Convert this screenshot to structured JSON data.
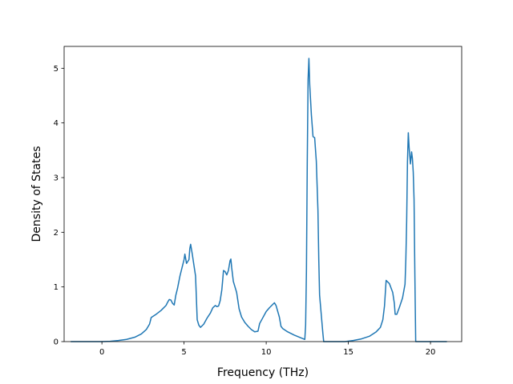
{
  "chart_data": {
    "type": "line",
    "xlabel": "Frequency (THz)",
    "ylabel": "Density of States",
    "xlim": [
      -2.3,
      21.9
    ],
    "ylim": [
      0,
      5.4
    ],
    "grid": false,
    "x_ticks": [
      0,
      5,
      10,
      15,
      20
    ],
    "y_ticks": [
      0,
      1,
      2,
      3,
      4,
      5
    ],
    "x_tick_labels": [
      "0",
      "5",
      "10",
      "15",
      "20"
    ],
    "y_tick_labels": [
      "0",
      "1",
      "2",
      "3",
      "4",
      "5"
    ],
    "series": [
      {
        "color": "#1f77b4",
        "points": [
          [
            -1.9,
            0
          ],
          [
            0.0,
            0.0
          ],
          [
            0.5,
            0.005
          ],
          [
            1.0,
            0.02
          ],
          [
            1.5,
            0.04
          ],
          [
            2.0,
            0.08
          ],
          [
            2.4,
            0.14
          ],
          [
            2.7,
            0.22
          ],
          [
            2.9,
            0.32
          ],
          [
            3.0,
            0.44
          ],
          [
            3.3,
            0.5
          ],
          [
            3.6,
            0.57
          ],
          [
            3.9,
            0.66
          ],
          [
            4.0,
            0.72
          ],
          [
            4.1,
            0.77
          ],
          [
            4.2,
            0.76
          ],
          [
            4.3,
            0.7
          ],
          [
            4.4,
            0.67
          ],
          [
            4.5,
            0.85
          ],
          [
            4.6,
            0.97
          ],
          [
            4.75,
            1.2
          ],
          [
            4.9,
            1.38
          ],
          [
            5.0,
            1.5
          ],
          [
            5.05,
            1.6
          ],
          [
            5.15,
            1.43
          ],
          [
            5.3,
            1.5
          ],
          [
            5.35,
            1.7
          ],
          [
            5.4,
            1.78
          ],
          [
            5.5,
            1.6
          ],
          [
            5.6,
            1.4
          ],
          [
            5.7,
            1.2
          ],
          [
            5.8,
            0.4
          ],
          [
            5.9,
            0.3
          ],
          [
            6.0,
            0.26
          ],
          [
            6.2,
            0.32
          ],
          [
            6.4,
            0.43
          ],
          [
            6.6,
            0.52
          ],
          [
            6.75,
            0.62
          ],
          [
            6.9,
            0.66
          ],
          [
            7.0,
            0.64
          ],
          [
            7.1,
            0.65
          ],
          [
            7.2,
            0.75
          ],
          [
            7.3,
            0.95
          ],
          [
            7.35,
            1.12
          ],
          [
            7.4,
            1.3
          ],
          [
            7.5,
            1.28
          ],
          [
            7.6,
            1.22
          ],
          [
            7.7,
            1.3
          ],
          [
            7.8,
            1.48
          ],
          [
            7.85,
            1.51
          ],
          [
            7.9,
            1.35
          ],
          [
            8.0,
            1.1
          ],
          [
            8.2,
            0.9
          ],
          [
            8.35,
            0.6
          ],
          [
            8.5,
            0.45
          ],
          [
            8.7,
            0.35
          ],
          [
            8.9,
            0.28
          ],
          [
            9.1,
            0.22
          ],
          [
            9.3,
            0.18
          ],
          [
            9.5,
            0.19
          ],
          [
            9.6,
            0.33
          ],
          [
            9.8,
            0.44
          ],
          [
            10.0,
            0.55
          ],
          [
            10.2,
            0.62
          ],
          [
            10.4,
            0.68
          ],
          [
            10.5,
            0.71
          ],
          [
            10.6,
            0.66
          ],
          [
            10.8,
            0.45
          ],
          [
            10.9,
            0.28
          ],
          [
            11.0,
            0.24
          ],
          [
            11.3,
            0.18
          ],
          [
            11.7,
            0.12
          ],
          [
            12.1,
            0.07
          ],
          [
            12.35,
            0.04
          ],
          [
            12.4,
            0.3
          ],
          [
            12.45,
            1.3
          ],
          [
            12.5,
            3.3
          ],
          [
            12.55,
            4.8
          ],
          [
            12.6,
            5.18
          ],
          [
            12.65,
            4.7
          ],
          [
            12.75,
            4.15
          ],
          [
            12.85,
            3.75
          ],
          [
            12.95,
            3.73
          ],
          [
            13.05,
            3.3
          ],
          [
            13.15,
            2.4
          ],
          [
            13.2,
            1.5
          ],
          [
            13.25,
            0.85
          ],
          [
            13.35,
            0.5
          ],
          [
            13.45,
            0.15
          ],
          [
            13.5,
            0.0
          ],
          [
            14.8,
            0.0
          ],
          [
            15.3,
            0.02
          ],
          [
            15.8,
            0.05
          ],
          [
            16.3,
            0.1
          ],
          [
            16.7,
            0.18
          ],
          [
            16.95,
            0.26
          ],
          [
            17.1,
            0.4
          ],
          [
            17.2,
            0.65
          ],
          [
            17.3,
            1.12
          ],
          [
            17.5,
            1.06
          ],
          [
            17.7,
            0.9
          ],
          [
            17.8,
            0.7
          ],
          [
            17.85,
            0.5
          ],
          [
            17.95,
            0.5
          ],
          [
            18.1,
            0.62
          ],
          [
            18.3,
            0.8
          ],
          [
            18.45,
            1.05
          ],
          [
            18.5,
            1.5
          ],
          [
            18.55,
            2.2
          ],
          [
            18.6,
            3.3
          ],
          [
            18.65,
            3.82
          ],
          [
            18.7,
            3.55
          ],
          [
            18.78,
            3.25
          ],
          [
            18.85,
            3.47
          ],
          [
            18.9,
            3.35
          ],
          [
            18.95,
            3.1
          ],
          [
            19.0,
            2.6
          ],
          [
            19.05,
            1.2
          ],
          [
            19.1,
            0.0
          ],
          [
            21.0,
            0.0
          ]
        ]
      }
    ]
  }
}
